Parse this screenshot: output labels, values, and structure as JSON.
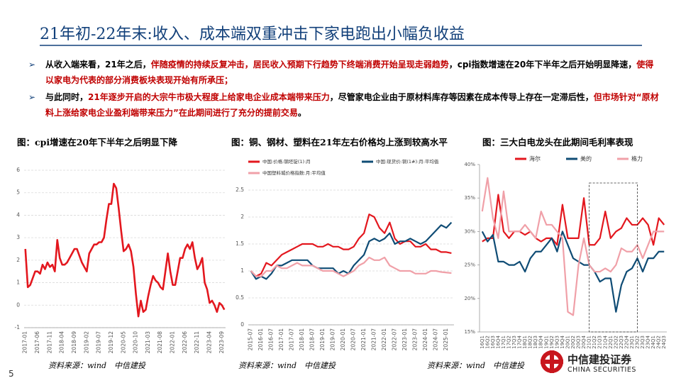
{
  "header": {
    "title": "21年初-22年末:收入、成本端双重冲击下家电跑出小幅负收益"
  },
  "bullets": [
    {
      "segments": [
        {
          "text": "从收入端来看，21年之后，",
          "color": "#000000"
        },
        {
          "text": "伴随疫情的持续反复冲击，居民收入预期下行趋势下终端消费开始呈现走弱趋势",
          "color": "#c00000"
        },
        {
          "text": "，cpi指数增速在20年下半年之后开始明显降速，",
          "color": "#000000"
        },
        {
          "text": "使得以家电为代表的部分消费板块表现开始有所承压；",
          "color": "#c00000"
        }
      ]
    },
    {
      "segments": [
        {
          "text": "与此同时，",
          "color": "#000000"
        },
        {
          "text": "21年逐步开启的大宗牛市极大程度上给家电企业成本端带来压力",
          "color": "#c00000"
        },
        {
          "text": "，尽管家电企业由于原材料库存等因素在成本传导上存在一定滞后性，",
          "color": "#000000"
        },
        {
          "text": "但市场针对“原材料上涨给家电企业盈利端带来压力”在此期间进行了充分的提前交易",
          "color": "#c00000"
        },
        {
          "text": "。",
          "color": "#000000"
        }
      ]
    }
  ],
  "footer": {
    "page": "5",
    "logo": "中信建投证券",
    "logo_en": "CHINA SECURITIES"
  },
  "chart_data": [
    {
      "type": "line",
      "title": "图：cpi增速在20年下半年之后明显下降",
      "source": "资料来源：wind　中信建投",
      "categories": [
        "2017-01",
        null,
        null,
        null,
        null,
        "2017-06",
        null,
        null,
        null,
        null,
        "2017-11",
        null,
        null,
        null,
        null,
        "2018-04",
        null,
        null,
        null,
        null,
        "2018-09",
        null,
        null,
        null,
        null,
        "2019-02",
        null,
        null,
        null,
        null,
        "2019-07",
        null,
        null,
        null,
        null,
        "2019-12",
        null,
        null,
        null,
        null,
        "2020-05",
        null,
        null,
        null,
        null,
        "2020-10",
        null,
        null,
        null,
        null,
        "2021-03",
        null,
        null,
        null,
        null,
        "2021-08",
        null,
        null,
        null,
        null,
        "2022-01",
        null,
        null,
        null,
        null,
        "2022-06",
        null,
        null,
        null,
        null,
        "2022-11",
        null,
        null,
        null,
        null,
        "2023-04",
        null,
        null,
        null,
        null,
        "2023-09",
        null
      ],
      "values": [
        2.5,
        0.8,
        0.9,
        1.2,
        1.5,
        1.5,
        1.4,
        1.8,
        1.6,
        1.9,
        1.7,
        1.8,
        1.5,
        2.9,
        2.1,
        1.8,
        1.8,
        1.9,
        2.1,
        2.3,
        2.5,
        2.5,
        2.2,
        1.9,
        1.7,
        1.5,
        2.3,
        2.5,
        2.7,
        2.7,
        2.8,
        2.8,
        3.0,
        3.8,
        4.5,
        4.5,
        5.4,
        5.2,
        4.3,
        3.3,
        2.4,
        2.5,
        2.7,
        2.4,
        1.7,
        0.5,
        -0.5,
        0.2,
        -0.3,
        -0.2,
        0.4,
        0.9,
        1.3,
        1.1,
        1.0,
        0.8,
        0.7,
        1.5,
        2.3,
        1.5,
        0.9,
        0.9,
        1.5,
        2.1,
        2.1,
        2.5,
        2.7,
        2.5,
        2.8,
        2.1,
        1.6,
        1.8,
        2.1,
        1.0,
        0.7,
        0.1,
        0.2,
        0.0,
        -0.3,
        0.1,
        0.0,
        -0.2
      ],
      "color": "#e3171e",
      "ylim": [
        -1,
        6
      ],
      "yticks": [
        -1,
        0,
        1,
        2,
        3,
        4,
        5,
        6
      ],
      "grid": true
    },
    {
      "type": "line",
      "title": "图：铜、钢材、塑料在21年左右价格均上涨到较高水平",
      "source": "资料来源：wind　中信建投",
      "categories": [
        "2015-07",
        null,
        "2016-01",
        null,
        "2016-07",
        null,
        "2017-01",
        null,
        "2017-07",
        null,
        "2018-01",
        null,
        "2018-07",
        null,
        "2019-01",
        null,
        "2019-07",
        null,
        "2020-01",
        null,
        "2020-07",
        null,
        "2021-01",
        null,
        "2021-07",
        null,
        "2022-01",
        null,
        "2022-07",
        null,
        "2023-01",
        null,
        "2023-07",
        null,
        "2024-01",
        null,
        "2024-07",
        null,
        "2025-01",
        null
      ],
      "series": [
        {
          "name": "中国:价格:钢坯锭(1):月",
          "color": "#e3171e",
          "values": [
            1.0,
            0.9,
            0.95,
            1.15,
            1.1,
            1.2,
            1.3,
            1.35,
            1.4,
            1.45,
            1.5,
            1.5,
            1.5,
            1.45,
            1.45,
            1.5,
            1.45,
            1.45,
            1.4,
            1.4,
            1.45,
            1.6,
            1.7,
            2.05,
            2.0,
            1.8,
            1.7,
            1.9,
            1.6,
            1.5,
            1.55,
            1.55,
            1.45,
            1.45,
            1.5,
            1.4,
            1.4,
            1.35,
            1.35,
            1.33
          ]
        },
        {
          "name": "中国:现货价:铜(1#):月:平均值",
          "color": "#0f4c75",
          "values": [
            1.0,
            0.85,
            0.9,
            0.85,
            0.95,
            1.1,
            1.1,
            1.15,
            1.2,
            1.2,
            1.2,
            1.2,
            1.1,
            1.05,
            1.05,
            1.05,
            1.05,
            0.95,
            1.0,
            0.95,
            1.1,
            1.2,
            1.3,
            1.55,
            1.6,
            1.55,
            1.6,
            1.7,
            1.5,
            1.55,
            1.55,
            1.6,
            1.55,
            1.5,
            1.55,
            1.65,
            1.75,
            1.85,
            1.8,
            1.9
          ]
        },
        {
          "name": "中国塑料城价格指数:月:平均值",
          "color": "#f0a0a8",
          "values": [
            1.0,
            0.9,
            0.9,
            1.0,
            1.0,
            1.1,
            1.05,
            1.05,
            1.1,
            1.15,
            1.1,
            1.1,
            1.1,
            1.05,
            1.0,
            1.0,
            1.0,
            0.95,
            0.9,
            0.95,
            1.0,
            1.1,
            1.15,
            1.25,
            1.2,
            1.2,
            1.25,
            1.1,
            1.05,
            1.0,
            1.0,
            1.0,
            0.95,
            0.95,
            0.95,
            1.0,
            1.0,
            0.98,
            0.97,
            0.96
          ]
        }
      ],
      "legend": "top",
      "ylim": [
        0,
        2.5
      ],
      "yticks": [
        0,
        0.5,
        1,
        1.5,
        2,
        2.5
      ],
      "grid": true
    },
    {
      "type": "line",
      "title": "图：三大白电龙头在此期间毛利率表现",
      "source": "资料来源：wind　中信建投",
      "categories": [
        "16Q1",
        "16Q2",
        "16Q3",
        "16Q4",
        "17Q1",
        "17Q2",
        "17Q3",
        "17Q4",
        "18Q1",
        "18Q2",
        "18Q3",
        "18Q4",
        "19Q1",
        "19Q2",
        "19Q3",
        "19Q4",
        "20Q1",
        "20Q2",
        "20Q3",
        "20Q4",
        "21Q1",
        "21Q2",
        "21Q3",
        "21Q4",
        "22Q1",
        "22Q2",
        "22Q3",
        "22Q4",
        "23Q1",
        "23Q2",
        "23Q3",
        "23Q4",
        "24Q1",
        "24Q2",
        "24Q3"
      ],
      "series": [
        {
          "name": "海尔",
          "color": "#e3171e",
          "values": [
            28.5,
            29,
            29,
            35.5,
            30,
            29,
            30,
            30,
            29.5,
            30,
            29,
            28.5,
            29,
            29,
            28,
            34,
            29,
            29,
            29,
            35,
            28,
            28,
            29,
            33,
            29,
            30,
            30.5,
            32,
            31,
            31,
            32,
            31,
            28,
            32,
            31
          ]
        },
        {
          "name": "美的",
          "color": "#0f4c75",
          "values": [
            30,
            28.5,
            29.5,
            25.5,
            25.5,
            25,
            25,
            25.5,
            24,
            26,
            27,
            27,
            28,
            29,
            27,
            30,
            28,
            26,
            25.5,
            25,
            25,
            24,
            22.5,
            23,
            23,
            18,
            22,
            24,
            24.5,
            26,
            24,
            26,
            26,
            27,
            27
          ]
        },
        {
          "name": "格力",
          "color": "#f0a0a8",
          "values": [
            33,
            38,
            32,
            29,
            36,
            30,
            30,
            30,
            31,
            30,
            29,
            33,
            31,
            31,
            30,
            29,
            18,
            17.5,
            25,
            29,
            25,
            24,
            24,
            24.5,
            24,
            25,
            27.5,
            27,
            27,
            28,
            26,
            28,
            30,
            30,
            30
          ]
        }
      ],
      "legend": "top",
      "ylim": [
        15,
        40
      ],
      "yticks": [
        {
          "value": 15,
          "label": "15%"
        },
        {
          "value": 20,
          "label": "20%"
        },
        {
          "value": 25,
          "label": "25%"
        },
        {
          "value": 30,
          "label": "30%"
        },
        {
          "value": 35,
          "label": "35%"
        },
        {
          "value": 40,
          "label": "40%"
        }
      ],
      "grid": false
    }
  ]
}
